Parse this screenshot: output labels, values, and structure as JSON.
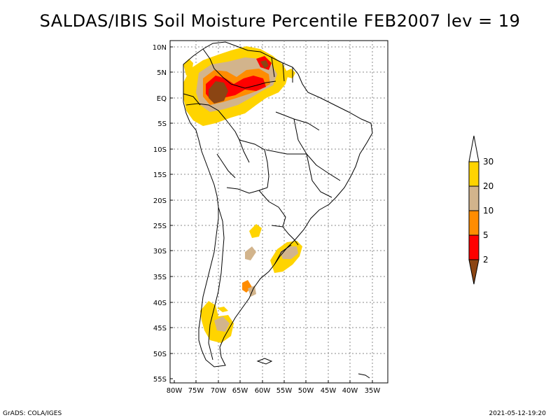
{
  "title": "SALDAS/IBIS Soil Moisture Percentile FEB2007 lev = 19",
  "lat_labels": [
    "10N",
    "5N",
    "EQ",
    "5S",
    "10S",
    "15S",
    "20S",
    "25S",
    "30S",
    "35S",
    "40S",
    "45S",
    "50S",
    "55S"
  ],
  "lon_labels": [
    "80W",
    "75W",
    "70W",
    "65W",
    "60W",
    "55W",
    "50W",
    "45W",
    "40W",
    "35W"
  ],
  "legend": {
    "labels": [
      "30",
      "20",
      "10",
      "5",
      "2"
    ],
    "colors": [
      "#ffffff",
      "#ffd400",
      "#d2b48c",
      "#ff8c00",
      "#ff0000",
      "#8b4513"
    ]
  },
  "colors": {
    "yellow": "#ffd400",
    "tan": "#d2b48c",
    "orange": "#ff8c00",
    "red": "#ff0000",
    "brown": "#8b4513"
  },
  "footer": {
    "left": "GrADS: COLA/IGES",
    "right": "2021-05-12-19:20"
  }
}
